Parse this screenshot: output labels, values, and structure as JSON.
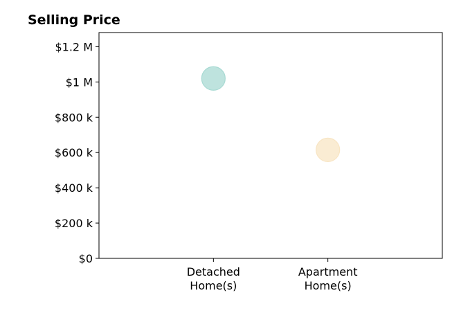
{
  "chart_data": {
    "type": "scatter",
    "title": "Selling Price",
    "xlabel": "",
    "ylabel": "",
    "categories": [
      [
        "Detached",
        "Home(s)"
      ],
      [
        "Apartment",
        "Home(s)"
      ]
    ],
    "xlim": [
      0,
      3
    ],
    "ylim": [
      0,
      1280000
    ],
    "yticks": [
      {
        "value": 0,
        "label": "$0"
      },
      {
        "value": 200000,
        "label": "$200 k"
      },
      {
        "value": 400000,
        "label": "$400 k"
      },
      {
        "value": 600000,
        "label": "$600 k"
      },
      {
        "value": 800000,
        "label": "$800 k"
      },
      {
        "value": 1000000,
        "label": "$1 M"
      },
      {
        "value": 1200000,
        "label": "$1.2 M"
      }
    ],
    "points": [
      {
        "category": 0,
        "x": 1,
        "y": 1020000,
        "color": "#a8dad3"
      },
      {
        "category": 1,
        "x": 2,
        "y": 615000,
        "color": "#f8e5c4"
      }
    ],
    "grid": false,
    "legend": "none"
  }
}
